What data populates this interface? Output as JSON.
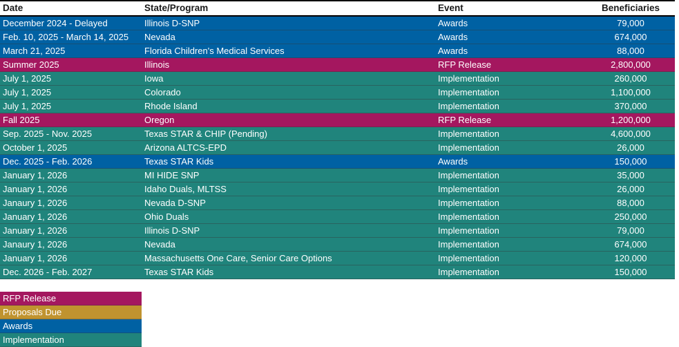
{
  "colors": {
    "rfp_release": "#A4175F",
    "proposals_due": "#C0932F",
    "awards": "#0061A3",
    "implementation": "#20847C",
    "header_text": "#1A1A1A",
    "row_text": "#FFFFFF"
  },
  "chart_data": {
    "type": "table",
    "columns": [
      {
        "key": "date",
        "label": "Date"
      },
      {
        "key": "program",
        "label": "State/Program"
      },
      {
        "key": "event",
        "label": "Event"
      },
      {
        "key": "beneficiaries",
        "label": "Beneficiaries"
      }
    ],
    "rows": [
      {
        "date": "December 2024 - Delayed",
        "program": "Illinois D-SNP",
        "event": "Awards",
        "beneficiaries": "79,000",
        "type": "awards"
      },
      {
        "date": "Feb. 10, 2025 - March 14, 2025",
        "program": "Nevada",
        "event": "Awards",
        "beneficiaries": "674,000",
        "type": "awards"
      },
      {
        "date": "March 21, 2025",
        "program": "Florida Children's Medical Services",
        "event": "Awards",
        "beneficiaries": "88,000",
        "type": "awards"
      },
      {
        "date": "Summer 2025",
        "program": "Illinois",
        "event": "RFP Release",
        "beneficiaries": "2,800,000",
        "type": "rfp_release"
      },
      {
        "date": "July 1, 2025",
        "program": "Iowa",
        "event": "Implementation",
        "beneficiaries": "260,000",
        "type": "implementation"
      },
      {
        "date": "July 1, 2025",
        "program": "Colorado",
        "event": "Implementation",
        "beneficiaries": "1,100,000",
        "type": "implementation"
      },
      {
        "date": "July 1, 2025",
        "program": "Rhode Island",
        "event": "Implementation",
        "beneficiaries": "370,000",
        "type": "implementation"
      },
      {
        "date": "Fall 2025",
        "program": "Oregon",
        "event": "RFP Release",
        "beneficiaries": "1,200,000",
        "type": "rfp_release"
      },
      {
        "date": "Sep. 2025 - Nov. 2025",
        "program": "Texas STAR & CHIP (Pending)",
        "event": "Implementation",
        "beneficiaries": "4,600,000",
        "type": "implementation"
      },
      {
        "date": "October 1, 2025",
        "program": "Arizona ALTCS-EPD",
        "event": "Implementation",
        "beneficiaries": "26,000",
        "type": "implementation"
      },
      {
        "date": "Dec. 2025 - Feb. 2026",
        "program": "Texas STAR Kids",
        "event": "Awards",
        "beneficiaries": "150,000",
        "type": "awards"
      },
      {
        "date": "January 1, 2026",
        "program": "MI HIDE SNP",
        "event": "Implementation",
        "beneficiaries": "35,000",
        "type": "implementation"
      },
      {
        "date": "January 1, 2026",
        "program": "Idaho Duals, MLTSS",
        "event": "Implementation",
        "beneficiaries": "26,000",
        "type": "implementation"
      },
      {
        "date": "Janaury 1, 2026",
        "program": "Nevada D-SNP",
        "event": "Implementation",
        "beneficiaries": "88,000",
        "type": "implementation"
      },
      {
        "date": "January 1, 2026",
        "program": "Ohio Duals",
        "event": "Implementation",
        "beneficiaries": "250,000",
        "type": "implementation"
      },
      {
        "date": "January 1, 2026",
        "program": "Illinois D-SNP",
        "event": "Implementation",
        "beneficiaries": "79,000",
        "type": "implementation"
      },
      {
        "date": "Janaury 1, 2026",
        "program": "Nevada",
        "event": "Implementation",
        "beneficiaries": "674,000",
        "type": "implementation"
      },
      {
        "date": "January 1, 2026",
        "program": "Massachusetts One Care, Senior Care Options",
        "event": "Implementation",
        "beneficiaries": "120,000",
        "type": "implementation"
      },
      {
        "date": "Dec. 2026 - Feb. 2027",
        "program": "Texas STAR Kids",
        "event": "Implementation",
        "beneficiaries": "150,000",
        "type": "implementation"
      }
    ],
    "legend": [
      {
        "label": "RFP Release",
        "type": "rfp_release"
      },
      {
        "label": "Proposals Due",
        "type": "proposals_due"
      },
      {
        "label": "Awards",
        "type": "awards"
      },
      {
        "label": "Implementation",
        "type": "implementation"
      }
    ]
  }
}
